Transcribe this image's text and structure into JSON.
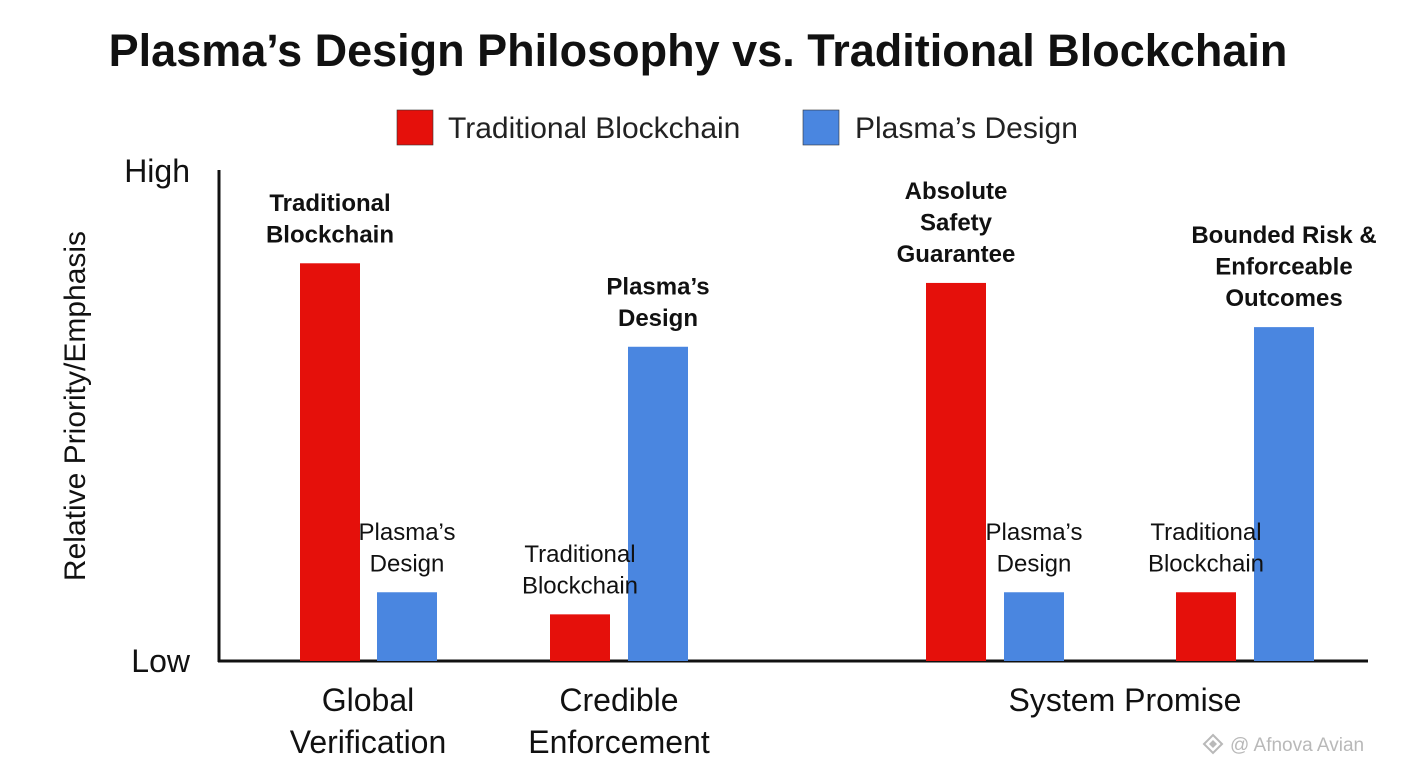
{
  "title": "Plasma’s Design Philosophy vs. Traditional Blockchain",
  "watermark": "@ Afnova Avian",
  "colors": {
    "traditional": "#e5100b",
    "plasma": "#4a86e0",
    "axis": "#111111"
  },
  "chart_data": {
    "type": "bar",
    "title": "Plasma’s Design Philosophy vs. Traditional Blockchain",
    "ylabel": "Relative Priority/Emphasis",
    "xlabel": "",
    "y_ticks": [
      "Low",
      "High"
    ],
    "ylim": [
      0,
      100
    ],
    "grid": false,
    "legend_position": "top-center",
    "legend": [
      {
        "name": "Traditional Blockchain",
        "color": "#e5100b"
      },
      {
        "name": "Plasma’s Design",
        "color": "#4a86e0"
      }
    ],
    "categories": [
      "Global Verification",
      "Credible Enforcement",
      "System Promise"
    ],
    "category_label_lines": [
      [
        "Global",
        "Verification"
      ],
      [
        "Credible",
        "Enforcement"
      ],
      [
        "System Promise"
      ]
    ],
    "bars": [
      {
        "category": "Global Verification",
        "series": "Traditional Blockchain",
        "value": 81,
        "label": [
          "Traditional",
          "Blockchain"
        ],
        "label_bold": true
      },
      {
        "category": "Global Verification",
        "series": "Plasma’s Design",
        "value": 14,
        "label": [
          "Plasma’s",
          "Design"
        ],
        "label_bold": false
      },
      {
        "category": "Credible Enforcement",
        "series": "Traditional Blockchain",
        "value": 9.5,
        "label": [
          "Traditional",
          "Blockchain"
        ],
        "label_bold": false
      },
      {
        "category": "Credible Enforcement",
        "series": "Plasma’s Design",
        "value": 64,
        "label": [
          "Plasma’s",
          "Design"
        ],
        "label_bold": true
      },
      {
        "category": "System Promise",
        "series": "Traditional Blockchain",
        "value": 77,
        "label": [
          "Absolute",
          "Safety",
          "Guarantee"
        ],
        "label_bold": true
      },
      {
        "category": "System Promise",
        "series": "Plasma’s Design",
        "value": 14,
        "label": [
          "Plasma’s",
          "Design"
        ],
        "label_bold": false
      },
      {
        "category": "System Promise",
        "series": "Traditional Blockchain",
        "value": 14,
        "label": [
          "Traditional",
          "Blockchain"
        ],
        "label_bold": false
      },
      {
        "category": "System Promise",
        "series": "Plasma’s Design",
        "value": 68,
        "label": [
          "Bounded Risk &",
          "Enforceable",
          "Outcomes"
        ],
        "label_bold": true
      }
    ]
  }
}
